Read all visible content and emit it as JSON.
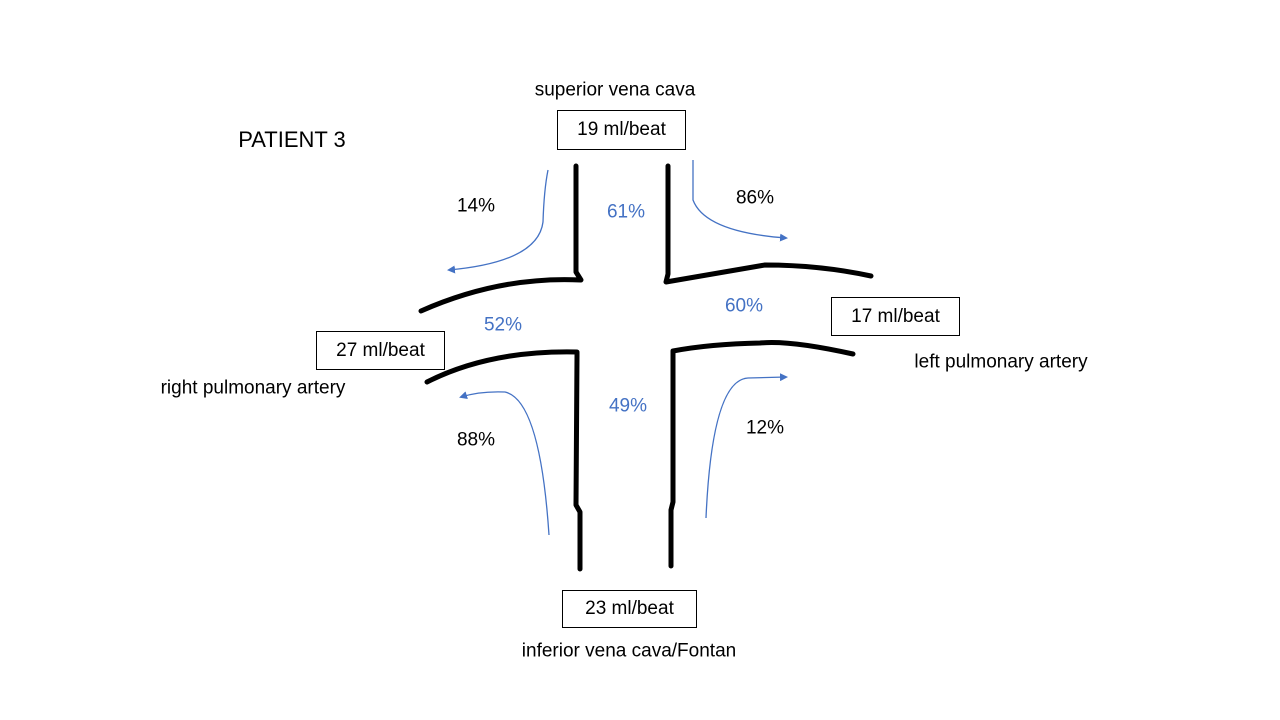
{
  "title": "PATIENT 3",
  "vessels": {
    "svc": {
      "label": "superior vena cava",
      "flow": "19 ml/beat"
    },
    "lpa": {
      "label": "left pulmonary artery",
      "flow": "17 ml/beat"
    },
    "rpa": {
      "label": "right pulmonary artery",
      "flow": "27 ml/beat"
    },
    "ivc": {
      "label": "inferior vena cava/Fontan",
      "flow": "23 ml/beat"
    }
  },
  "percentages": {
    "svc_to_rpa": "14%",
    "svc_to_lpa": "86%",
    "ivc_to_rpa": "88%",
    "ivc_to_lpa": "12%",
    "svc_share": "61%",
    "lpa_share": "60%",
    "rpa_share": "52%",
    "ivc_share": "49%"
  },
  "colors": {
    "walls": "#000000",
    "flow_arrows": "#4472c4",
    "share_text": "#4472c4"
  }
}
